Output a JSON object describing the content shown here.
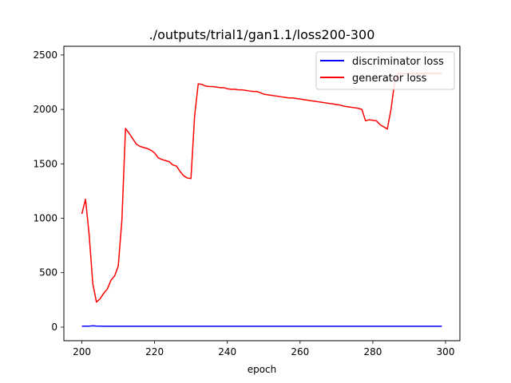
{
  "chart_data": {
    "type": "line",
    "title": "./outputs/trial1/gan1.1/loss200-300",
    "xlabel": "epoch",
    "ylabel": "",
    "xlim": [
      195.05,
      303.95
    ],
    "ylim": [
      -125,
      2580
    ],
    "xticks": [
      200,
      220,
      240,
      260,
      280,
      300
    ],
    "yticks": [
      0,
      500,
      1000,
      1500,
      2000,
      2500
    ],
    "grid": false,
    "legend_position": "upper right",
    "x": [
      200,
      201,
      202,
      203,
      204,
      205,
      206,
      207,
      208,
      209,
      210,
      211,
      212,
      213,
      214,
      215,
      216,
      217,
      218,
      219,
      220,
      221,
      222,
      223,
      224,
      225,
      226,
      227,
      228,
      229,
      230,
      231,
      232,
      233,
      234,
      235,
      236,
      237,
      238,
      239,
      240,
      241,
      242,
      243,
      244,
      245,
      246,
      247,
      248,
      249,
      250,
      251,
      252,
      253,
      254,
      255,
      256,
      257,
      258,
      259,
      260,
      261,
      262,
      263,
      264,
      265,
      266,
      267,
      268,
      269,
      270,
      271,
      272,
      273,
      274,
      275,
      276,
      277,
      278,
      279,
      280,
      281,
      282,
      283,
      284,
      285,
      286,
      287,
      288,
      289,
      290,
      291,
      292,
      293,
      294,
      295,
      296,
      297,
      298,
      299
    ],
    "series": [
      {
        "name": "discriminator loss",
        "color": "#0000ff",
        "values": [
          8,
          9,
          9,
          12,
          10,
          9,
          8,
          8,
          8,
          8,
          8,
          8,
          8,
          8,
          8,
          8,
          8,
          8,
          8,
          8,
          8,
          8,
          8,
          8,
          8,
          8,
          8,
          8,
          8,
          8,
          8,
          8,
          8,
          8,
          8,
          8,
          8,
          8,
          8,
          8,
          8,
          8,
          8,
          8,
          8,
          8,
          8,
          8,
          8,
          8,
          8,
          8,
          8,
          8,
          8,
          8,
          8,
          8,
          8,
          8,
          8,
          8,
          8,
          8,
          8,
          8,
          8,
          8,
          8,
          8,
          8,
          8,
          8,
          8,
          8,
          8,
          8,
          8,
          8,
          8,
          8,
          8,
          8,
          8,
          8,
          8,
          8,
          8,
          8,
          8,
          8,
          8,
          8,
          8,
          8,
          8,
          8,
          8,
          8,
          8
        ]
      },
      {
        "name": "generator loss",
        "color": "#ff0000",
        "values": [
          1040,
          1175,
          850,
          400,
          230,
          260,
          310,
          350,
          430,
          470,
          560,
          980,
          1825,
          1780,
          1730,
          1680,
          1660,
          1650,
          1640,
          1625,
          1600,
          1555,
          1540,
          1530,
          1520,
          1490,
          1480,
          1430,
          1390,
          1370,
          1365,
          1940,
          2235,
          2230,
          2215,
          2210,
          2210,
          2205,
          2200,
          2200,
          2190,
          2185,
          2185,
          2180,
          2180,
          2175,
          2170,
          2165,
          2165,
          2155,
          2140,
          2135,
          2130,
          2125,
          2120,
          2115,
          2110,
          2105,
          2105,
          2100,
          2095,
          2090,
          2085,
          2080,
          2075,
          2070,
          2065,
          2060,
          2055,
          2050,
          2045,
          2040,
          2030,
          2025,
          2020,
          2015,
          2010,
          2000,
          1895,
          1905,
          1900,
          1895,
          1860,
          1840,
          1820,
          2000,
          2250,
          2330,
          2330,
          2330,
          2330,
          2330,
          2330,
          2330,
          2330,
          2330,
          2330,
          2330,
          2330,
          2330
        ]
      }
    ]
  }
}
